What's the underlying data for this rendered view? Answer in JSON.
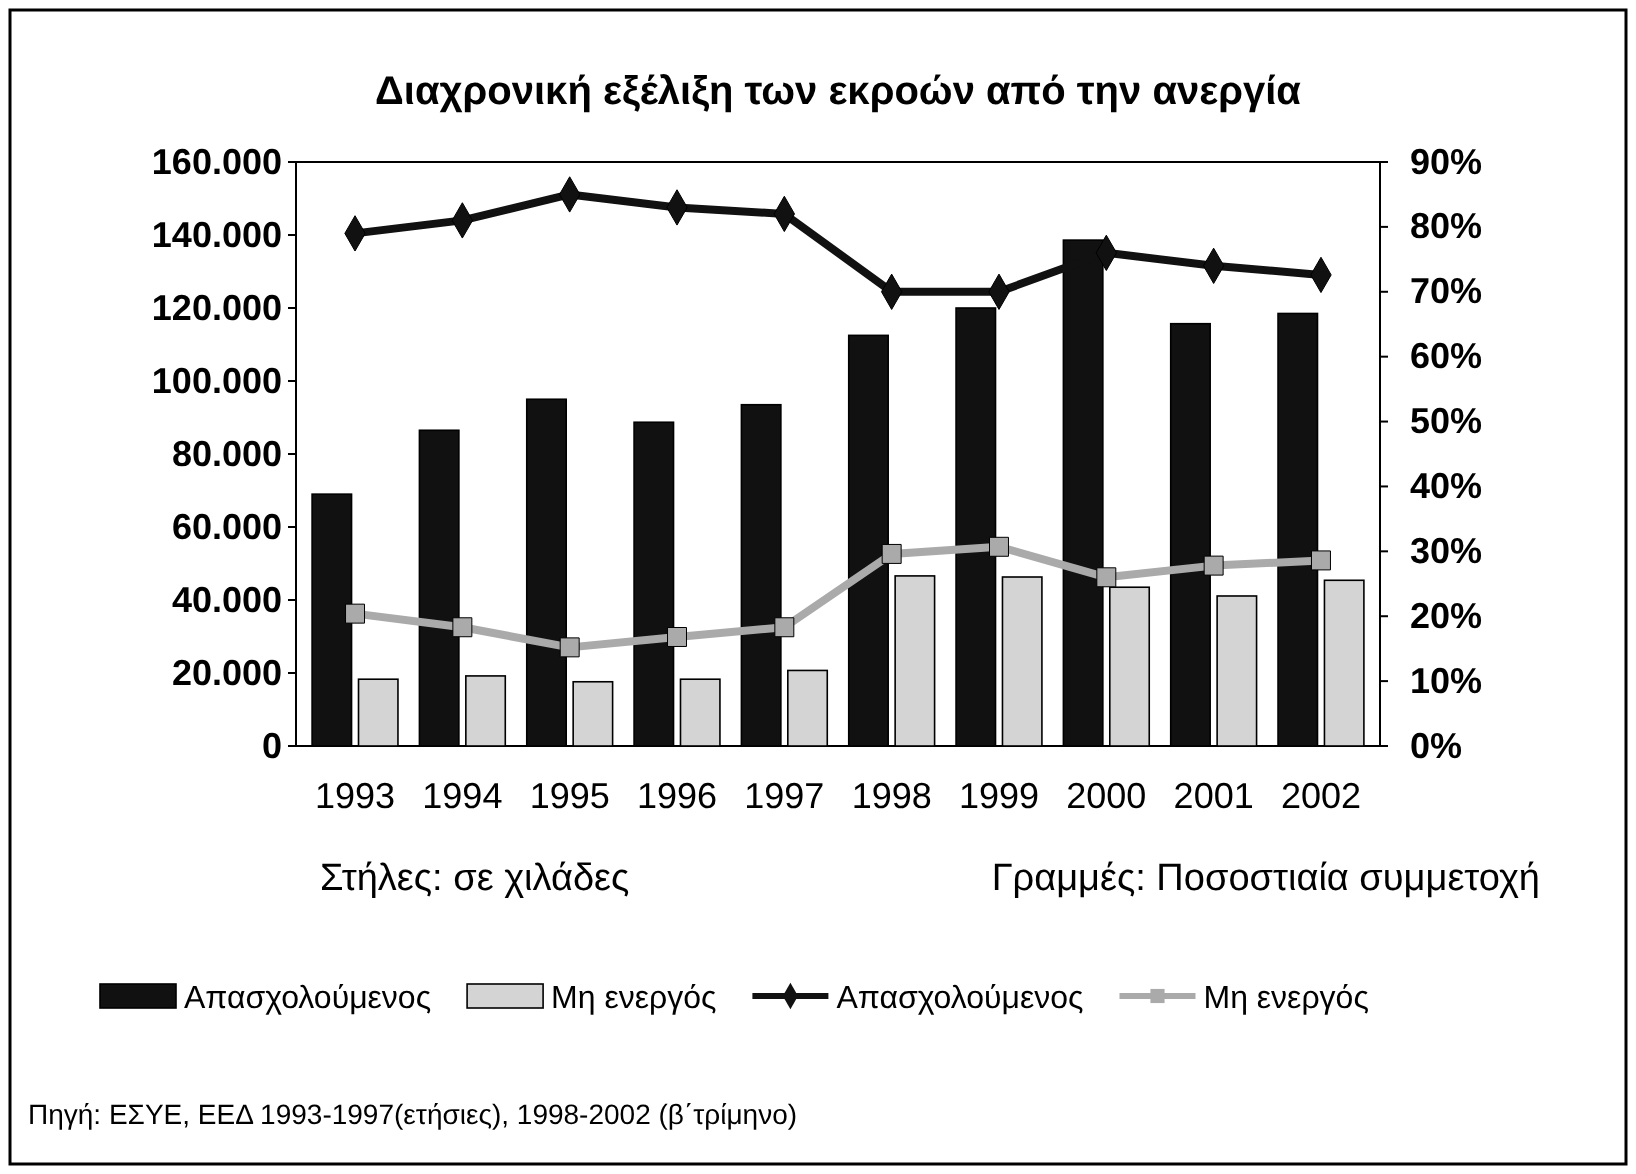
{
  "chart_data": {
    "type": "bar",
    "title": "Διαχρονική εξέλιξη των εκροών από την ανεργία",
    "categories": [
      "1993",
      "1994",
      "1995",
      "1996",
      "1997",
      "1998",
      "1999",
      "2000",
      "2001",
      "2002"
    ],
    "series": [
      {
        "name": "Απασχολούμενος",
        "color": "#111111",
        "values": [
          69000,
          86500,
          95000,
          88700,
          93500,
          112500,
          120000,
          138600,
          115700,
          118500
        ]
      },
      {
        "name": "Μη ενεργός",
        "color": "#d4d4d4",
        "values": [
          18300,
          19200,
          17600,
          18300,
          20700,
          46600,
          46300,
          43500,
          41100,
          45400
        ]
      },
      {
        "name": "Απασχολούμενος",
        "type": "line",
        "axis": "y2",
        "marker": "diamond",
        "color": "#111111",
        "values": [
          79,
          81,
          85,
          83,
          82,
          70,
          70,
          76,
          74,
          72.6
        ]
      },
      {
        "name": "Μη ενεργός",
        "type": "line",
        "axis": "y2",
        "marker": "square",
        "color": "#aaaaaa",
        "values": [
          20.4,
          18.3,
          15.2,
          16.8,
          18.3,
          29.6,
          30.7,
          26,
          27.8,
          28.6
        ]
      }
    ],
    "ylim": [
      0,
      160000
    ],
    "yticks": [
      0,
      {
        "value": 20000,
        "label": "20.000"
      },
      {
        "value": 40000,
        "label": "40.000"
      },
      {
        "value": 60000,
        "label": "60.000"
      },
      {
        "value": 80000,
        "label": "80.000"
      },
      {
        "value": 100000,
        "label": "100.000"
      },
      {
        "value": 120000,
        "label": "120.000"
      },
      {
        "value": 140000,
        "label": "140.000"
      },
      {
        "value": 160000,
        "label": "160.000"
      }
    ],
    "y2lim": [
      0,
      90
    ],
    "y2ticks": [
      {
        "value": 0,
        "label": "0%"
      },
      {
        "value": 10,
        "label": "10%"
      },
      {
        "value": 20,
        "label": "20%"
      },
      {
        "value": 30,
        "label": "30%"
      },
      {
        "value": 40,
        "label": "40%"
      },
      {
        "value": 50,
        "label": "50%"
      },
      {
        "value": 60,
        "label": "60%"
      },
      {
        "value": 70,
        "label": "70%"
      },
      {
        "value": 80,
        "label": "80%"
      },
      {
        "value": 90,
        "label": "90%"
      }
    ],
    "legend": "bottom",
    "annotations": [
      "Στήλες: σε χιλάδες",
      "Γραμμές: Ποσοστιαία συμμετοχή",
      "Πηγή: ΕΣΥΕ, ΕΕΔ 1993-1997(ετήσιες), 1998-2002 (β΄τρίμηνο)"
    ]
  }
}
